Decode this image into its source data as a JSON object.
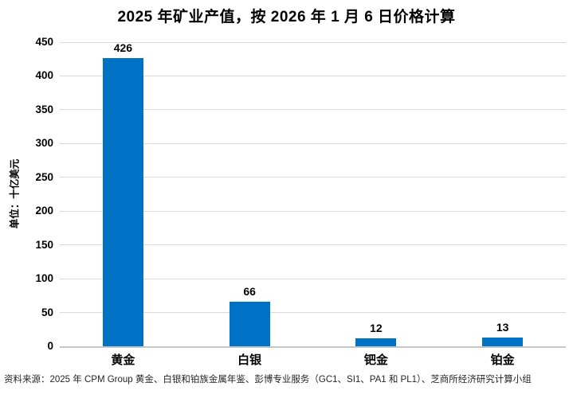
{
  "chart_data": {
    "type": "bar",
    "title": "2025 年矿业产值，按 2026 年 1 月 6 日价格计算",
    "xlabel": "",
    "ylabel": "单位：十亿美元",
    "categories": [
      "黄金",
      "白银",
      "钯金",
      "铂金"
    ],
    "category_keys": [
      "gold",
      "silver",
      "palladium",
      "platinum"
    ],
    "values": [
      426,
      66,
      12,
      13
    ],
    "ylim": [
      0,
      450
    ],
    "ytick_step": 50,
    "grid": true,
    "legend_position": "none",
    "bar_color": "#0072C6",
    "gridline_color": "#D9D9D9",
    "axis_line_color": "#C6C6C6",
    "text_color": "#000000"
  },
  "footer": {
    "source": "资料来源：2025 年 CPM Group 黄金、白银和铂族金属年鉴、彭博专业服务（GC1、SI1、PA1 和 PL1）、芝商所经济研究计算小组"
  }
}
